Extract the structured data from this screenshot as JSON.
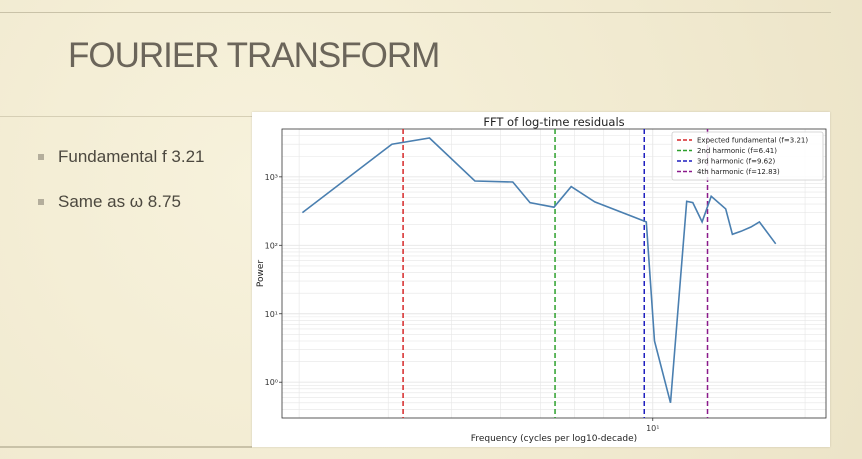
{
  "slide": {
    "title": "FOURIER TRANSFORM",
    "bullets": [
      "Fundamental f 3.21",
      "Same as ω 8.75"
    ]
  },
  "chart_data": {
    "type": "line",
    "title": "FFT of log-time residuals",
    "xlabel": "Frequency (cycles per log10-decade)",
    "ylabel": "Power",
    "x_scale": "log",
    "y_scale": "log",
    "xlim": [
      1.85,
      22.0
    ],
    "ylim": [
      0.3,
      5000
    ],
    "x_tick_labels": [
      {
        "value": 10,
        "label": "10¹"
      }
    ],
    "y_tick_labels": [
      {
        "value": 1,
        "label": "10⁰"
      },
      {
        "value": 10,
        "label": "10¹"
      },
      {
        "value": 100,
        "label": "10²"
      },
      {
        "value": 1000,
        "label": "10³"
      }
    ],
    "grid": true,
    "legend_position": "top-right",
    "series": [
      {
        "color": "#4a7fb0",
        "x": [
          2.03,
          3.05,
          3.62,
          4.45,
          5.29,
          5.72,
          6.38,
          6.9,
          7.68,
          9.71,
          10.08,
          10.84,
          11.67,
          12.0,
          12.52,
          13.05,
          13.94,
          14.37,
          14.94,
          15.63,
          16.25,
          17.5
        ],
        "y": [
          300,
          3000,
          3700,
          870,
          840,
          420,
          360,
          720,
          430,
          220,
          4,
          0.5,
          440,
          420,
          220,
          520,
          340,
          145,
          160,
          185,
          220,
          105
        ]
      }
    ],
    "vertical_lines": [
      {
        "x": 3.21,
        "color": "#d62728",
        "label": "Expected fundamental (f=3.21)"
      },
      {
        "x": 6.41,
        "color": "#2ca02c",
        "label": "2nd harmonic (f=6.41)"
      },
      {
        "x": 9.62,
        "color": "#1f1fbf",
        "label": "3rd harmonic (f=9.62)"
      },
      {
        "x": 12.83,
        "color": "#8b1a8b",
        "label": "4th harmonic (f=12.83)"
      }
    ]
  }
}
